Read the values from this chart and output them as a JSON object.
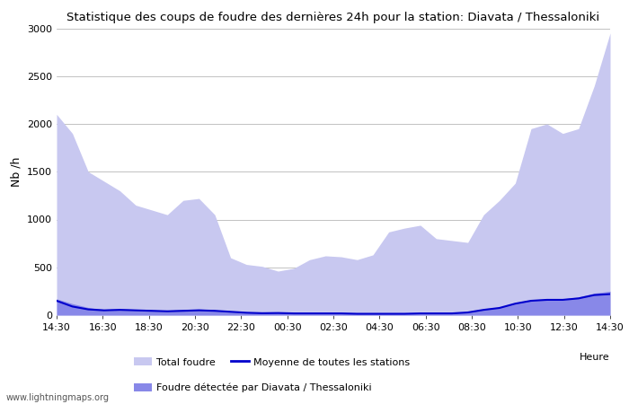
{
  "title": "Statistique des coups de foudre des dernières 24h pour la station: Diavata / Thessaloniki",
  "xlabel": "Heure",
  "ylabel": "Nb /h",
  "watermark": "www.lightningmaps.org",
  "ylim": [
    0,
    3000
  ],
  "yticks": [
    0,
    500,
    1000,
    1500,
    2000,
    2500,
    3000
  ],
  "x_labels": [
    "14:30",
    "16:30",
    "18:30",
    "20:30",
    "22:30",
    "00:30",
    "02:30",
    "04:30",
    "06:30",
    "08:30",
    "10:30",
    "12:30",
    "14:30"
  ],
  "legend": {
    "total_foudre_color": "#c8c8f0",
    "diavata_color": "#8888e8",
    "moyenne_color": "#0000cc"
  },
  "total_foudre": [
    2100,
    1900,
    1500,
    1400,
    1300,
    1150,
    1100,
    1050,
    1200,
    1220,
    1050,
    600,
    530,
    510,
    460,
    490,
    580,
    620,
    610,
    580,
    630,
    870,
    910,
    940,
    800,
    780,
    760,
    1050,
    1200,
    1380,
    1950,
    2000,
    1900,
    1950,
    2400,
    2950
  ],
  "diavata": [
    170,
    120,
    80,
    60,
    70,
    60,
    55,
    50,
    60,
    65,
    55,
    40,
    30,
    25,
    25,
    20,
    20,
    20,
    20,
    15,
    15,
    15,
    15,
    20,
    20,
    20,
    30,
    60,
    80,
    130,
    160,
    170,
    170,
    190,
    230,
    250
  ],
  "moyenne": [
    150,
    90,
    60,
    50,
    55,
    50,
    45,
    40,
    45,
    50,
    45,
    35,
    25,
    20,
    22,
    18,
    18,
    18,
    18,
    14,
    14,
    14,
    14,
    18,
    18,
    18,
    28,
    55,
    75,
    120,
    150,
    160,
    160,
    175,
    210,
    220
  ],
  "background_color": "#ffffff",
  "plot_bg_color": "#ffffff",
  "grid_color": "#aaaaaa",
  "title_fontsize": 9.5,
  "tick_fontsize": 8,
  "ylabel_fontsize": 9,
  "legend_fontsize": 8,
  "watermark_fontsize": 7
}
